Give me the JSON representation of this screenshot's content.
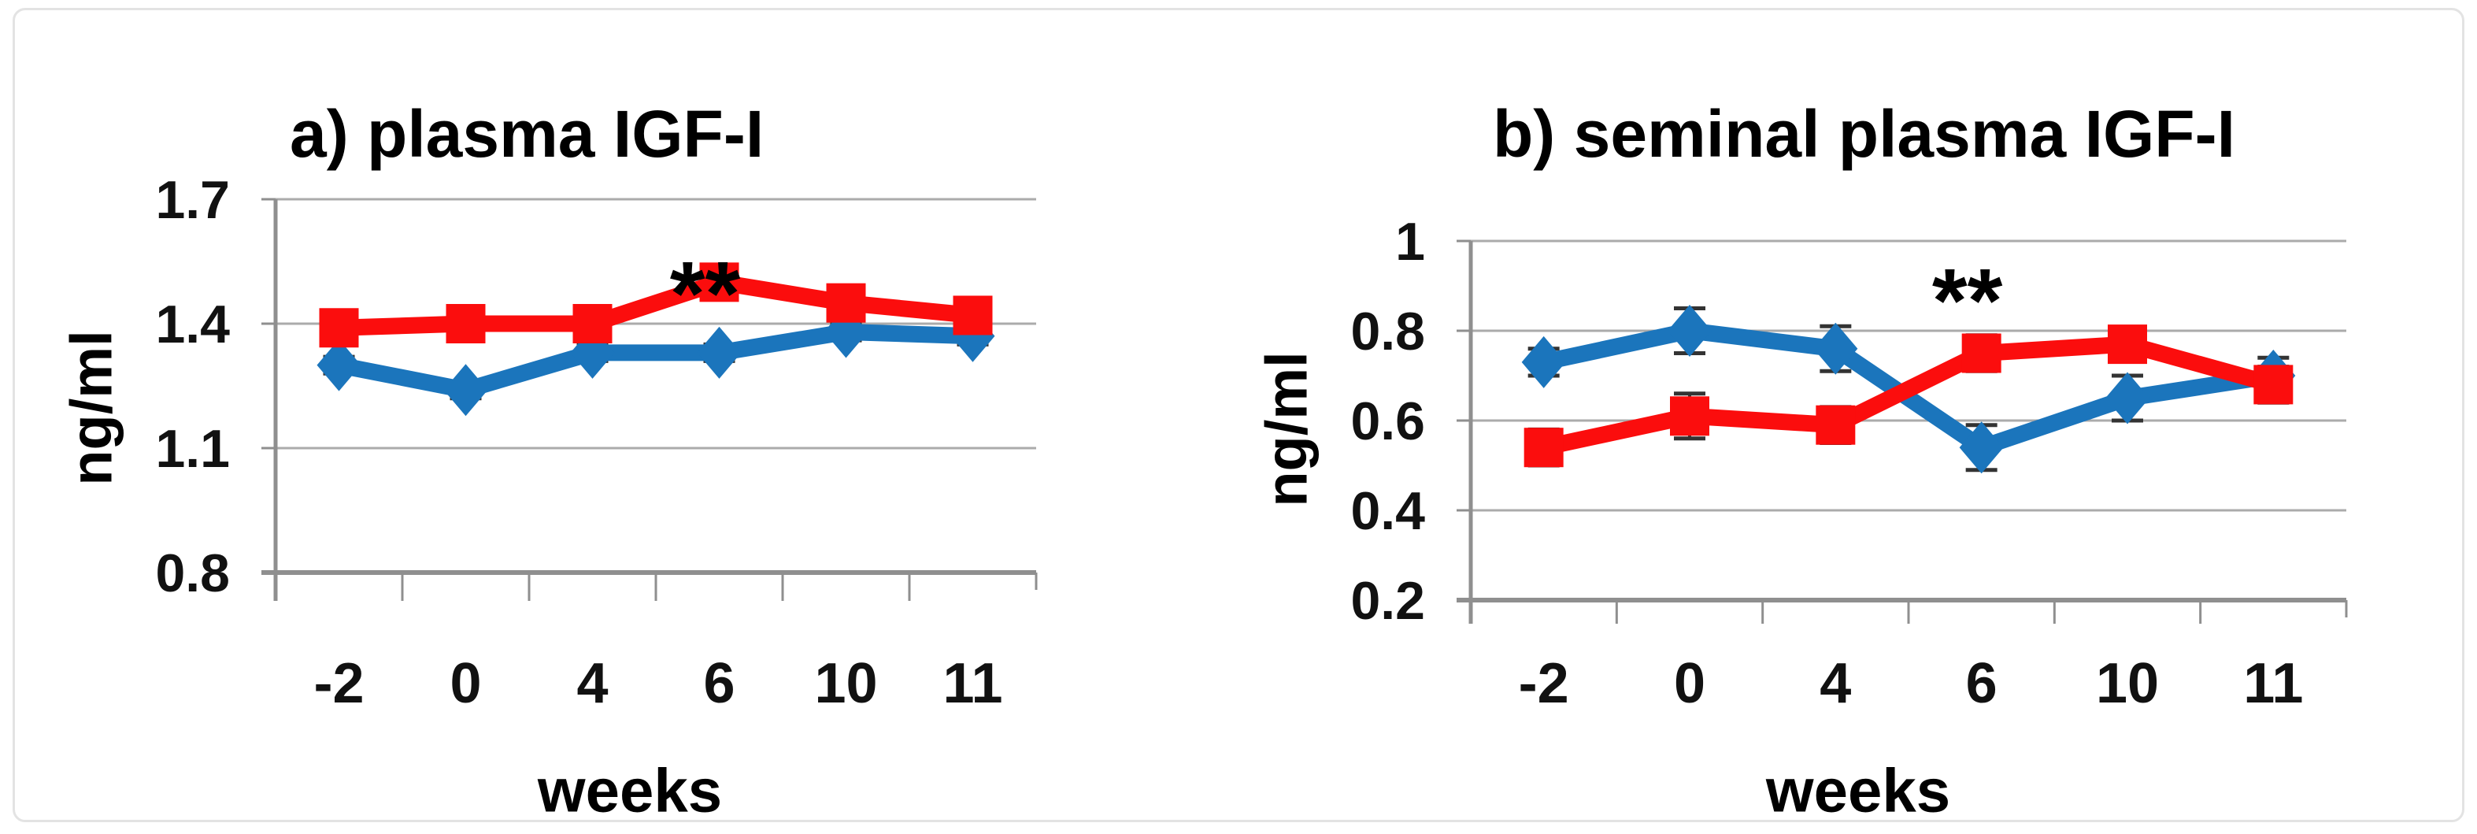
{
  "page": {
    "background_color": "#ffffff",
    "frame_border_color": "#e3e3e3"
  },
  "colors": {
    "series_blue": "#1B75BC",
    "series_red": "#FB0D0D",
    "gridline": "#ABABAB",
    "axis": "#8F8F8F",
    "error_bar": "#333333",
    "text": "#000000"
  },
  "chart_data": [
    {
      "type": "line",
      "panel": "a",
      "title": "a) plasma IGF-I",
      "xlabel": "weeks",
      "ylabel": "ng/ml",
      "categories": [
        "-2",
        "0",
        "4",
        "6",
        "10",
        "11"
      ],
      "ylim": [
        0.8,
        1.7
      ],
      "yticks": [
        0.8,
        1.1,
        1.4,
        1.7
      ],
      "ytick_labels": [
        "0.8",
        "1.1",
        "1.4",
        "1.7"
      ],
      "grid": true,
      "legend": "none",
      "series": [
        {
          "name": "blue-diamond-group",
          "marker": "diamond",
          "color": "#1B75BC",
          "values": [
            1.3,
            1.24,
            1.33,
            1.33,
            1.38,
            1.37
          ],
          "errors": [
            0.02,
            0.02,
            0.02,
            0.02,
            0.02,
            0.02
          ]
        },
        {
          "name": "red-square-group",
          "marker": "square",
          "color": "#FB0D0D",
          "values": [
            1.39,
            1.4,
            1.4,
            1.5,
            1.45,
            1.42
          ],
          "errors": [
            0.02,
            0.03,
            0.02,
            0.04,
            0.02,
            0.02
          ]
        }
      ],
      "annotation": {
        "text": "**",
        "category_index": 3,
        "y": 1.53
      }
    },
    {
      "type": "line",
      "panel": "b",
      "title": "b) seminal plasma IGF-I",
      "xlabel": "weeks",
      "ylabel": "ng/ml",
      "categories": [
        "-2",
        "0",
        "4",
        "6",
        "10",
        "11"
      ],
      "ylim": [
        0.2,
        1.0
      ],
      "yticks": [
        0.2,
        0.4,
        0.6,
        0.8,
        1.0
      ],
      "ytick_labels": [
        "0.2",
        "0.4",
        "0.6",
        "0.8",
        "1"
      ],
      "grid": true,
      "legend": "none",
      "series": [
        {
          "name": "blue-diamond-group",
          "marker": "diamond",
          "color": "#1B75BC",
          "values": [
            0.73,
            0.8,
            0.76,
            0.54,
            0.65,
            0.7
          ],
          "errors": [
            0.03,
            0.05,
            0.05,
            0.05,
            0.05,
            0.04
          ]
        },
        {
          "name": "red-square-group",
          "marker": "square",
          "color": "#FB0D0D",
          "values": [
            0.54,
            0.61,
            0.59,
            0.75,
            0.77,
            0.68
          ],
          "errors": [
            0.04,
            0.05,
            0.04,
            0.04,
            0.03,
            0.04
          ]
        }
      ],
      "annotation": {
        "text": "**",
        "category_index": 3,
        "y": 0.92
      }
    }
  ]
}
